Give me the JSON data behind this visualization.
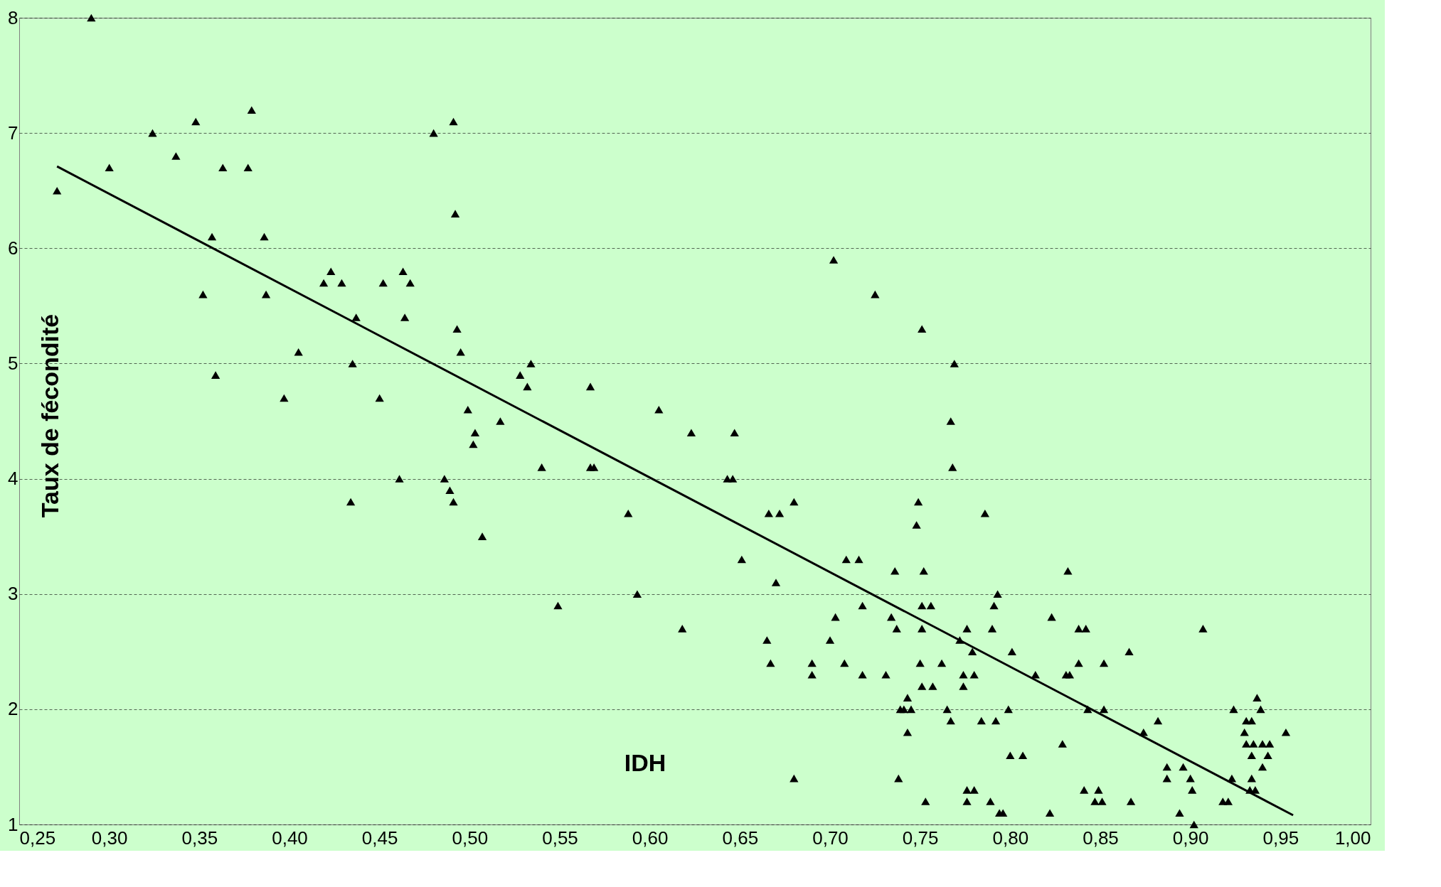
{
  "chart_data": {
    "type": "scatter",
    "xlabel": "IDH",
    "ylabel": "Taux de fécondité",
    "xlim": [
      0.25,
      1.0
    ],
    "ylim": [
      1,
      8
    ],
    "xticks": [
      {
        "value": 0.25,
        "label": "0,25"
      },
      {
        "value": 0.3,
        "label": "0,30"
      },
      {
        "value": 0.35,
        "label": "0,35"
      },
      {
        "value": 0.4,
        "label": "0,40"
      },
      {
        "value": 0.45,
        "label": "0,45"
      },
      {
        "value": 0.5,
        "label": "0,50"
      },
      {
        "value": 0.55,
        "label": "0,55"
      },
      {
        "value": 0.6,
        "label": "0,60"
      },
      {
        "value": 0.65,
        "label": "0,65"
      },
      {
        "value": 0.7,
        "label": "0,70"
      },
      {
        "value": 0.75,
        "label": "0,75"
      },
      {
        "value": 0.8,
        "label": "0,80"
      },
      {
        "value": 0.85,
        "label": "0,85"
      },
      {
        "value": 0.9,
        "label": "0,90"
      },
      {
        "value": 0.95,
        "label": "0,95"
      },
      {
        "value": 1.0,
        "label": "1,00"
      }
    ],
    "yticks": [
      1,
      2,
      3,
      4,
      5,
      6,
      7,
      8
    ],
    "grid": "y",
    "marker": "triangle",
    "series": [
      {
        "color": "#000000",
        "x": [
          0.271,
          0.29,
          0.3,
          0.324,
          0.337,
          0.348,
          0.352,
          0.357,
          0.359,
          0.363,
          0.377,
          0.379,
          0.386,
          0.387,
          0.397,
          0.405,
          0.419,
          0.423,
          0.429,
          0.434,
          0.435,
          0.437,
          0.45,
          0.452,
          0.461,
          0.463,
          0.464,
          0.467,
          0.48,
          0.486,
          0.489,
          0.491,
          0.491,
          0.492,
          0.493,
          0.495,
          0.499,
          0.503,
          0.502,
          0.507,
          0.517,
          0.528,
          0.532,
          0.534,
          0.54,
          0.549,
          0.567,
          0.567,
          0.569,
          0.588,
          0.593,
          0.605,
          0.618,
          0.623,
          0.643,
          0.646,
          0.647,
          0.651,
          0.665,
          0.666,
          0.667,
          0.67,
          0.672,
          0.68,
          0.68,
          0.69,
          0.69,
          0.7,
          0.702,
          0.703,
          0.708,
          0.709,
          0.716,
          0.718,
          0.718,
          0.725,
          0.731,
          0.734,
          0.736,
          0.737,
          0.738,
          0.739,
          0.741,
          0.743,
          0.743,
          0.745,
          0.748,
          0.749,
          0.75,
          0.751,
          0.751,
          0.751,
          0.751,
          0.752,
          0.753,
          0.756,
          0.757,
          0.762,
          0.765,
          0.767,
          0.767,
          0.768,
          0.769,
          0.772,
          0.774,
          0.774,
          0.776,
          0.776,
          0.776,
          0.779,
          0.78,
          0.78,
          0.784,
          0.786,
          0.789,
          0.79,
          0.791,
          0.792,
          0.793,
          0.794,
          0.796,
          0.799,
          0.8,
          0.801,
          0.807,
          0.814,
          0.822,
          0.823,
          0.829,
          0.831,
          0.832,
          0.833,
          0.838,
          0.838,
          0.841,
          0.842,
          0.843,
          0.847,
          0.849,
          0.851,
          0.852,
          0.852,
          0.866,
          0.867,
          0.874,
          0.882,
          0.887,
          0.887,
          0.894,
          0.896,
          0.9,
          0.901,
          0.902,
          0.907,
          0.918,
          0.921,
          0.923,
          0.924,
          0.93,
          0.931,
          0.931,
          0.933,
          0.934,
          0.934,
          0.934,
          0.935,
          0.936,
          0.937,
          0.939,
          0.94,
          0.94,
          0.943,
          0.944,
          0.953
        ],
        "values": [
          6.5,
          8.0,
          6.7,
          7.0,
          6.8,
          7.1,
          5.6,
          6.1,
          4.9,
          6.7,
          6.7,
          7.2,
          6.1,
          5.6,
          4.7,
          5.1,
          5.7,
          5.8,
          5.7,
          3.8,
          5.0,
          5.4,
          4.7,
          5.7,
          4.0,
          5.8,
          5.4,
          5.7,
          7.0,
          4.0,
          3.9,
          7.1,
          3.8,
          6.3,
          5.3,
          5.1,
          4.6,
          4.4,
          4.3,
          3.5,
          4.5,
          4.9,
          4.8,
          5.0,
          4.1,
          2.9,
          4.8,
          4.1,
          4.1,
          3.7,
          3.0,
          4.6,
          2.7,
          4.4,
          4.0,
          4.0,
          4.4,
          3.3,
          2.6,
          3.7,
          2.4,
          3.1,
          3.7,
          3.8,
          1.4,
          2.3,
          2.4,
          2.6,
          5.9,
          2.8,
          2.4,
          3.3,
          3.3,
          2.3,
          2.9,
          5.6,
          2.3,
          2.8,
          3.2,
          2.7,
          1.4,
          2.0,
          2.0,
          2.1,
          1.8,
          2.0,
          3.6,
          3.8,
          2.4,
          5.3,
          2.7,
          2.9,
          2.2,
          3.2,
          1.2,
          2.9,
          2.2,
          2.4,
          2.0,
          4.5,
          1.9,
          4.1,
          5.0,
          2.6,
          2.2,
          2.3,
          2.7,
          1.3,
          1.2,
          2.5,
          2.3,
          1.3,
          1.9,
          3.7,
          1.2,
          2.7,
          2.9,
          1.9,
          3.0,
          1.1,
          1.1,
          2.0,
          1.6,
          2.5,
          1.6,
          2.3,
          1.1,
          2.8,
          1.7,
          2.3,
          3.2,
          2.3,
          2.7,
          2.4,
          1.3,
          2.7,
          2.0,
          1.2,
          1.3,
          1.2,
          2.0,
          2.4,
          2.5,
          1.2,
          1.8,
          1.9,
          1.5,
          1.4,
          1.1,
          1.5,
          1.4,
          1.3,
          1.0,
          2.7,
          1.2,
          1.2,
          1.4,
          2.0,
          1.8,
          1.9,
          1.7,
          1.3,
          1.9,
          1.6,
          1.4,
          1.7,
          1.3,
          2.1,
          2.0,
          1.5,
          1.7,
          1.6,
          1.7,
          1.8
        ]
      },
      {
        "type": "line",
        "marker": "none",
        "color": "#000000",
        "x": [
          0.271,
          0.957
        ],
        "values": [
          6.71,
          1.08
        ]
      }
    ]
  }
}
